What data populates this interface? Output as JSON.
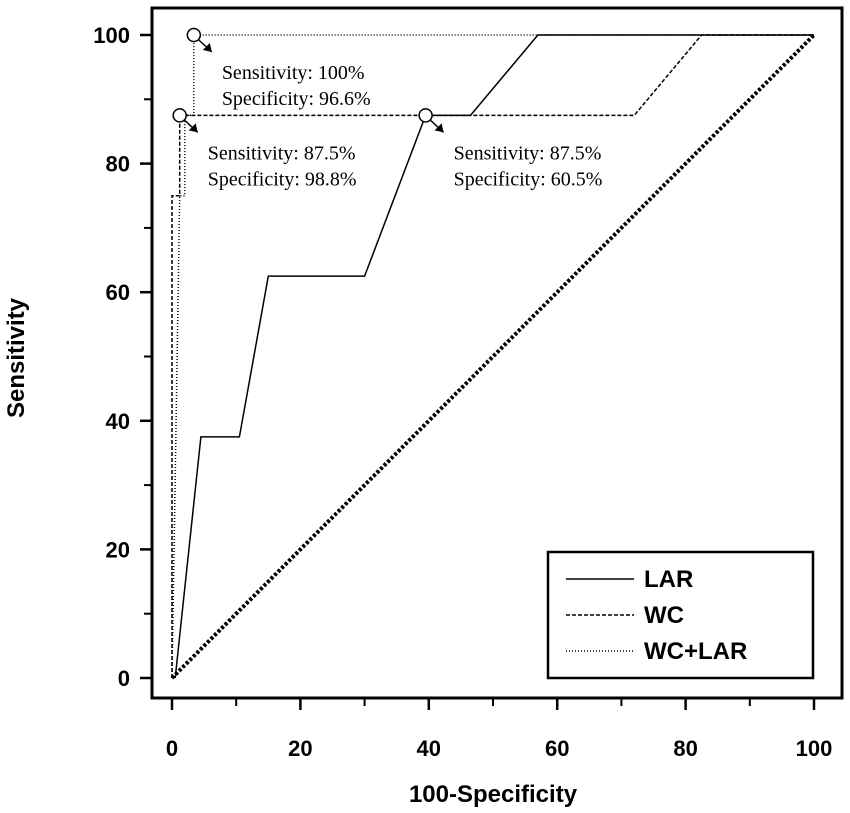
{
  "chart_data": {
    "type": "line",
    "title": "",
    "xlabel": "100-Specificity",
    "ylabel": "Sensitivity",
    "xlim": [
      0,
      100
    ],
    "ylim": [
      0,
      100
    ],
    "xticks": [
      "0",
      "20",
      "40",
      "60",
      "80",
      "100"
    ],
    "yticks": [
      "0",
      "20",
      "40",
      "60",
      "80",
      "100"
    ],
    "grid": false,
    "legend_position": "bottom-right",
    "series": [
      {
        "name": "LAR",
        "style": "solid",
        "x": [
          0.5,
          4.5,
          10.5,
          15,
          30,
          39.5,
          46.5,
          57,
          100
        ],
        "y": [
          0,
          37.5,
          37.5,
          62.5,
          62.5,
          87.5,
          87.5,
          100,
          100
        ]
      },
      {
        "name": "WC",
        "style": "dashed",
        "x": [
          0,
          0,
          1.2,
          1.2,
          72,
          82.5,
          100
        ],
        "y": [
          0,
          75,
          75,
          87.5,
          87.5,
          100,
          100
        ]
      },
      {
        "name": "WC+LAR",
        "style": "dotted",
        "x": [
          0,
          1.2,
          2,
          2,
          3.4,
          3.4,
          100
        ],
        "y": [
          0,
          75,
          75,
          87.5,
          87.5,
          100,
          100
        ]
      },
      {
        "name": "",
        "style": "reference",
        "x": [
          0,
          100
        ],
        "y": [
          0,
          100
        ]
      }
    ],
    "annotations": [
      {
        "x": 3.4,
        "y": 100,
        "lines": [
          "Sensitivity: 100%",
          "Specificity: 96.6%"
        ]
      },
      {
        "x": 1.2,
        "y": 87.5,
        "lines": [
          "Sensitivity: 87.5%",
          "Specificity: 98.8%"
        ]
      },
      {
        "x": 39.5,
        "y": 87.5,
        "lines": [
          "Sensitivity: 87.5%",
          "Specificity: 60.5%"
        ]
      }
    ],
    "legend": [
      "LAR",
      "WC",
      "WC+LAR"
    ]
  }
}
